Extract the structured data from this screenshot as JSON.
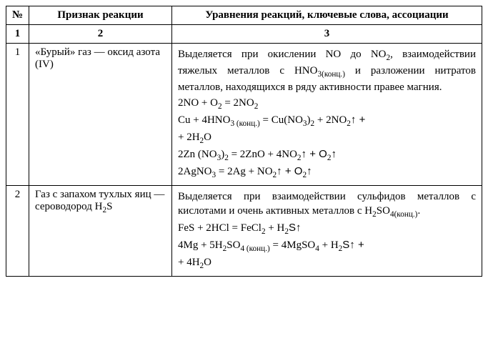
{
  "header": {
    "col1": "№",
    "col2": "Признак реакции",
    "col3": "Уравнения реакций, ключевые слова, ассоциации",
    "sub1": "1",
    "sub2": "2",
    "sub3": "3"
  },
  "rows": [
    {
      "num": "1",
      "sign_prefix": "«Бурый» газ — оксид азота (IV)",
      "desc_intro_a": "Выделяется при окислении NO до NO",
      "desc_intro_b": ", взаимодействии тяжелых металлов с HNO",
      "desc_intro_c": " и разложении нитратов металлов, находящихся в ряду активности правее магния.",
      "sub2": "2",
      "sub3konc": "3(конц.)",
      "eq1_a": "2NO + O",
      "eq1_b": " = 2NO",
      "eq2_a": "Cu + 4HNO",
      "eq2_b": " = Cu(NO",
      "eq2_c": ")",
      "eq2_d": " + 2NO",
      "eq2_e": "↑ +",
      "eq2_line2": "+ 2H",
      "eq2_line2b": "O",
      "eq3_a": "2Zn (NO",
      "eq3_b": ")",
      "eq3_c": " = 2ZnO + 4NO",
      "eq3_d": "↑ + O",
      "eq3_e": "↑",
      "eq4_a": "2AgNO",
      "eq4_b": " = 2Ag + NO",
      "eq4_c": "↑ + O",
      "eq4_d": "↑",
      "s2": "2",
      "s3": "3",
      "s3k": "3 (конц.)"
    },
    {
      "num": "2",
      "sign_a": "Газ с запахом тухлых яиц — сероводород H",
      "sign_b": "S",
      "desc_a": "Выделяется при взаимодействии сульфидов металлов с кислотами и очень активных металлов с H",
      "desc_b": "SO",
      "desc_c": ".",
      "sub2": "2",
      "sub4": "4",
      "sub4k": "4(конц.)",
      "eq1_a": "FeS + 2HCl = FeCl",
      "eq1_b": " + H",
      "eq1_c": "S↑",
      "eq2_a": "4Mg + 5H",
      "eq2_b": "SO",
      "eq2_c": " = 4MgSO",
      "eq2_d": " + H",
      "eq2_e": "S↑ +",
      "eq2_line2a": "+ 4H",
      "eq2_line2b": "O",
      "s2": "2",
      "s4": "4",
      "s4k": "4 (конц.)"
    }
  ]
}
